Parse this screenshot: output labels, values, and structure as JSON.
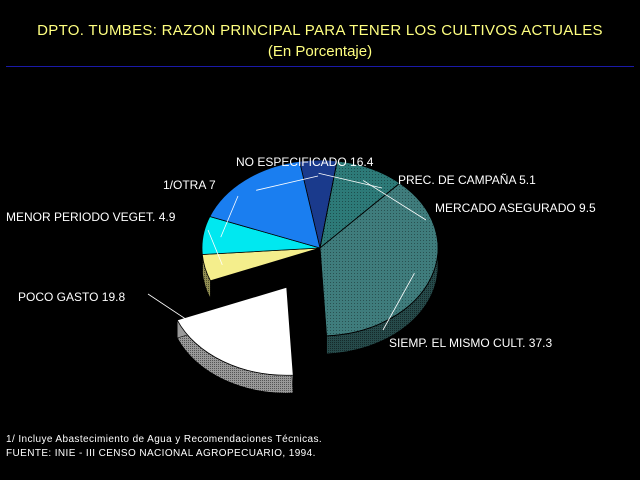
{
  "chart_data": {
    "type": "pie",
    "title": "DPTO. TUMBES: RAZON PRINCIPAL PARA TENER LOS CULTIVOS ACTUALES",
    "subtitle": "(En Porcentaje)",
    "slices": [
      {
        "label": "PREC. DE CAMPAÑA",
        "value": 5.1,
        "color": "#1a3a8c"
      },
      {
        "label": "MERCADO ASEGURADO",
        "value": 9.5,
        "color": "#2d7a78"
      },
      {
        "label": "SIEMP. EL MISMO CULT.",
        "value": 37.3,
        "color": "#3f7c7c"
      },
      {
        "label": "POCO GASTO",
        "value": 19.8,
        "color": "#ffffff"
      },
      {
        "label": "MENOR PERIODO VEGET.",
        "value": 4.9,
        "color": "#f4ee8c"
      },
      {
        "label": "1/OTRA",
        "value": 7,
        "color": "#00e8f0"
      },
      {
        "label": "NO ESPECIFICADO",
        "value": 16.4,
        "color": "#1a7ef0"
      }
    ]
  },
  "footnote": "1/ Incluye Abastecimiento de Agua y Recomendaciones Técnicas.",
  "source": "FUENTE: INIE - III CENSO NACIONAL AGROPECUARIO, 1994."
}
